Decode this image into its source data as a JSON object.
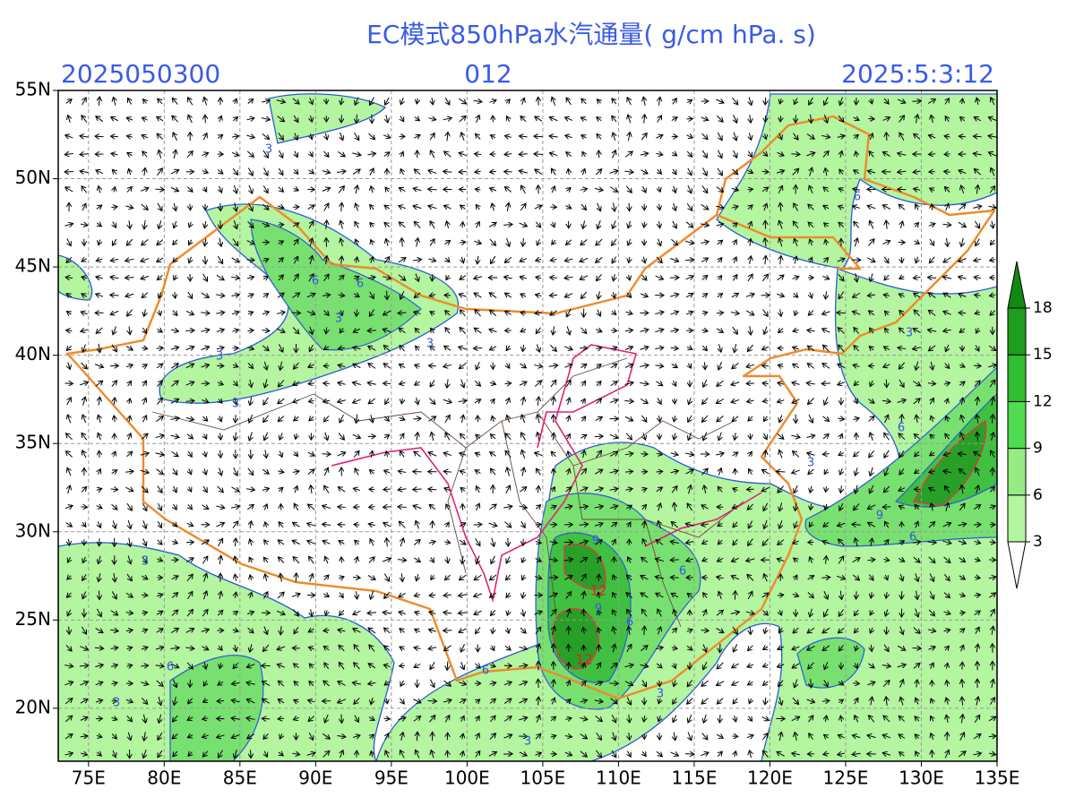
{
  "title": "EC模式850hPa水汽通量( g/cm hPa. s)",
  "init_time": "2025050300",
  "forecast_hour": "012",
  "valid_time": "2025:5:3:12",
  "map": {
    "xlim": [
      73,
      135
    ],
    "ylim": [
      17,
      55
    ],
    "yticks": [
      {
        "value": 55,
        "label": "55N"
      },
      {
        "value": 50,
        "label": "50N"
      },
      {
        "value": 45,
        "label": "45N"
      },
      {
        "value": 40,
        "label": "40N"
      },
      {
        "value": 35,
        "label": "35N"
      },
      {
        "value": 30,
        "label": "30N"
      },
      {
        "value": 25,
        "label": "25N"
      },
      {
        "value": 20,
        "label": "20N"
      }
    ],
    "xticks": [
      {
        "value": 75,
        "label": "75E"
      },
      {
        "value": 80,
        "label": "80E"
      },
      {
        "value": 85,
        "label": "85E"
      },
      {
        "value": 90,
        "label": "90E"
      },
      {
        "value": 95,
        "label": "95E"
      },
      {
        "value": 100,
        "label": "100E"
      },
      {
        "value": 105,
        "label": "105E"
      },
      {
        "value": 110,
        "label": "110E"
      },
      {
        "value": 115,
        "label": "115E"
      },
      {
        "value": 120,
        "label": "120E"
      },
      {
        "value": 125,
        "label": "125E"
      },
      {
        "value": 130,
        "label": "130E"
      },
      {
        "value": 135,
        "label": "135E"
      }
    ],
    "grid": true
  },
  "colorbar": {
    "levels": [
      3,
      6,
      9,
      12,
      15,
      18
    ],
    "colors": [
      "#ffffff",
      "#b4f5a0",
      "#96ec82",
      "#50dc50",
      "#32be32",
      "#1e9e1e",
      "#128a12"
    ]
  },
  "contour_labels": [
    {
      "label": "3",
      "color": "#3355dd"
    },
    {
      "label": "6",
      "color": "#3355dd"
    },
    {
      "label": "6",
      "color": "#3355dd"
    },
    {
      "label": "3",
      "color": "#3355dd"
    },
    {
      "label": "3",
      "color": "#3355dd"
    },
    {
      "label": "3",
      "color": "#3355dd"
    },
    {
      "label": "3",
      "color": "#3355dd"
    },
    {
      "label": "3",
      "color": "#3355dd"
    },
    {
      "label": "3",
      "color": "#3355dd"
    },
    {
      "label": "6",
      "color": "#3355dd"
    },
    {
      "label": "9",
      "color": "#3355dd"
    },
    {
      "label": "12",
      "color": "#dd2222"
    },
    {
      "label": "12",
      "color": "#dd2222"
    },
    {
      "label": "9",
      "color": "#3355dd"
    },
    {
      "label": "6",
      "color": "#3355dd"
    },
    {
      "label": "6",
      "color": "#3355dd"
    },
    {
      "label": "3",
      "color": "#3355dd"
    },
    {
      "label": "6",
      "color": "#3355dd"
    },
    {
      "label": "9",
      "color": "#3355dd"
    },
    {
      "label": "6",
      "color": "#3355dd"
    },
    {
      "label": "3",
      "color": "#3355dd"
    },
    {
      "label": "6",
      "color": "#3355dd"
    },
    {
      "label": "3",
      "color": "#3355dd"
    },
    {
      "label": "6",
      "color": "#3355dd"
    },
    {
      "label": "3",
      "color": "#3355dd"
    }
  ]
}
